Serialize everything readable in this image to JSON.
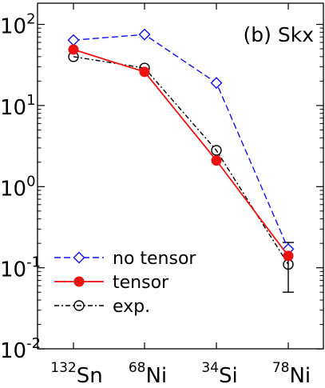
{
  "chart_data": {
    "type": "line",
    "panel_label": "(b) Skx",
    "categories": [
      {
        "mass": "132",
        "element": "Sn"
      },
      {
        "mass": "68",
        "element": "Ni"
      },
      {
        "mass": "34",
        "element": "Si"
      },
      {
        "mass": "78",
        "element": "Ni"
      }
    ],
    "y_scale": "log",
    "ylim": [
      0.01,
      200
    ],
    "y_ticks": [
      {
        "value": 0.01,
        "base": "10",
        "exp": "-2"
      },
      {
        "value": 0.1,
        "base": "10",
        "exp": "-1"
      },
      {
        "value": 1,
        "base": "10",
        "exp": "0"
      },
      {
        "value": 10,
        "base": "10",
        "exp": "1"
      },
      {
        "value": 100,
        "base": "10",
        "exp": "2"
      }
    ],
    "grid": false,
    "legend_position": "bottom-left",
    "series": [
      {
        "name": "no tensor",
        "color": "#1010ee",
        "line": "dashed",
        "marker": "open-diamond",
        "values": [
          64,
          75,
          19,
          0.17
        ]
      },
      {
        "name": "tensor",
        "color": "#ee1111",
        "line": "solid",
        "marker": "filled-circle",
        "values": [
          49,
          26,
          2.1,
          0.14
        ]
      },
      {
        "name": "exp.",
        "color": "#000000",
        "line": "dash-dot",
        "marker": "open-circle",
        "values": [
          40,
          29,
          2.8,
          0.11
        ],
        "errors_lower": [
          null,
          null,
          null,
          0.05
        ],
        "errors_upper": [
          null,
          null,
          null,
          0.205
        ]
      }
    ]
  }
}
